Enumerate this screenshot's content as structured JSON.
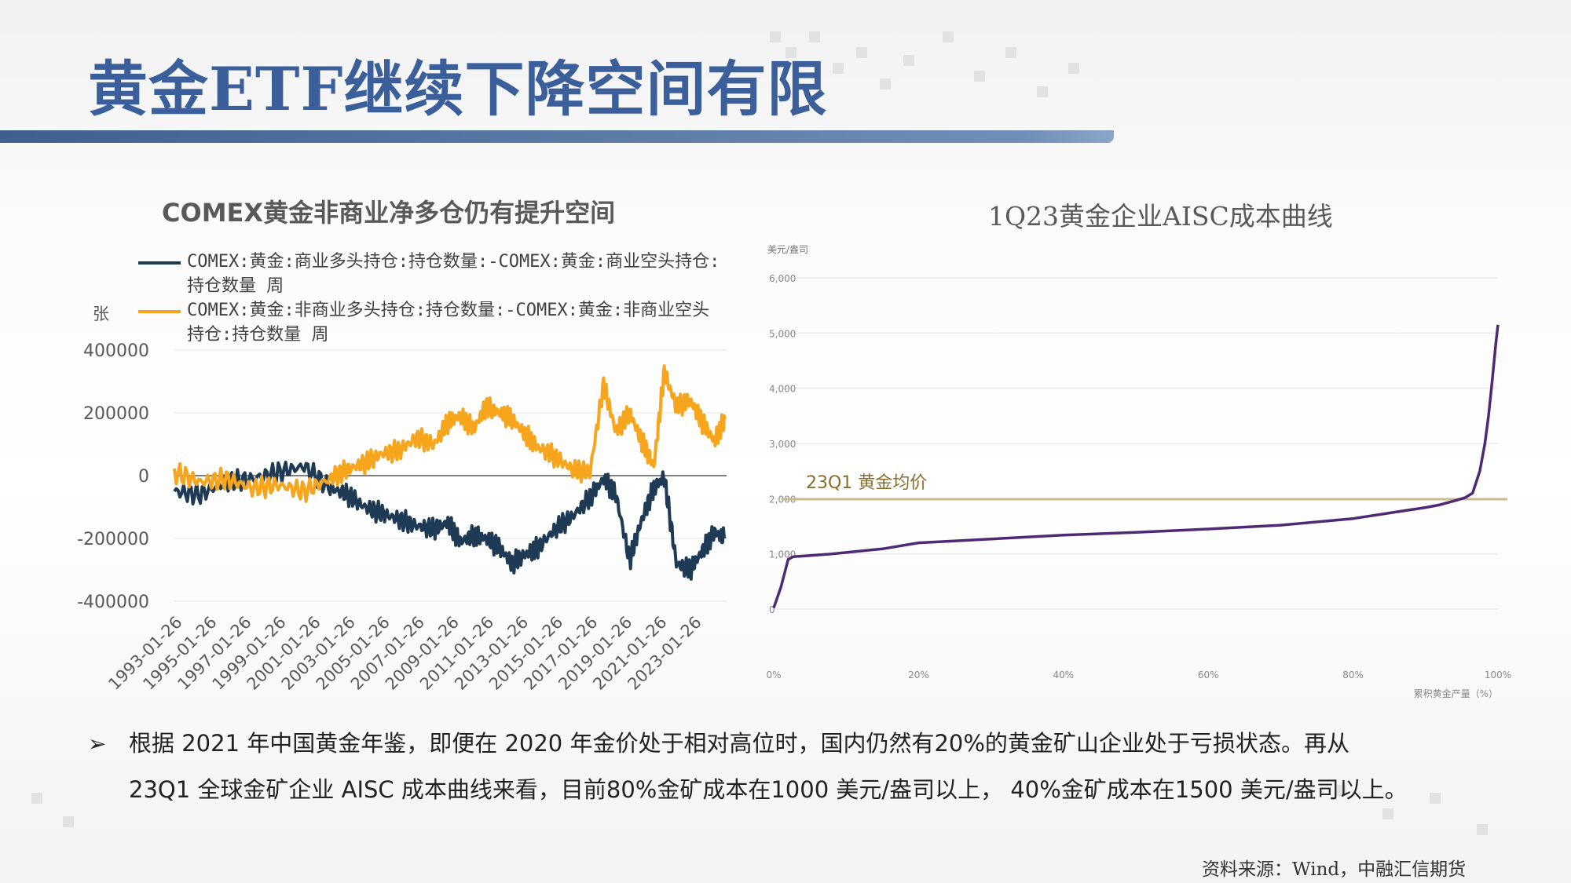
{
  "title": "黄金ETF继续下降空间有限",
  "left_chart": {
    "title": "COMEX黄金非商业净多仓仍有提升空间",
    "unit": "张",
    "colors": {
      "commercial": "#1f3a55",
      "noncommercial": "#f7a51c"
    }
  },
  "right_chart": {
    "title": "1Q23黄金企业AISC成本曲线",
    "avg_label": "23Q1 黄金均价",
    "colors": {
      "curve": "#4e2a74",
      "avg_line": "#c9b98c"
    }
  },
  "chart_data": [
    {
      "type": "line",
      "title": "COMEX黄金非商业净多仓仍有提升空间",
      "ylabel": "张",
      "ylim": [
        -400000,
        400000
      ],
      "yticks": [
        400000,
        200000,
        0,
        -200000,
        -400000
      ],
      "ytick_labels": [
        "400000",
        "200000",
        "0",
        "-200000",
        "-400000"
      ],
      "x_tick_labels": [
        "1993-01-26",
        "1995-01-26",
        "1997-01-26",
        "1999-01-26",
        "2001-01-26",
        "2003-01-26",
        "2005-01-26",
        "2007-01-26",
        "2009-01-26",
        "2011-01-26",
        "2013-01-26",
        "2015-01-26",
        "2017-01-26",
        "2019-01-26",
        "2021-01-26",
        "2023-01-26"
      ],
      "legend": "top",
      "x": [
        1992.5,
        1994.0,
        1995.5,
        1997.0,
        1998.5,
        2000.0,
        2001.5,
        2002.5,
        2003.5,
        2004.5,
        2005.5,
        2006.5,
        2007.5,
        2008.3,
        2009.0,
        2009.8,
        2010.5,
        2011.3,
        2012.0,
        2012.8,
        2013.5,
        2014.5,
        2015.5,
        2016.5,
        2017.3,
        2018.0,
        2018.8,
        2019.5,
        2020.2,
        2020.8,
        2021.5,
        2022.3,
        2023.0,
        2023.7,
        2024.3
      ],
      "series": [
        {
          "name": "COMEX:黄金:商业多头持仓:持仓数量:-COMEX:黄金:商业空头持仓:持仓数量 周",
          "values": [
            -50000,
            -60000,
            -20000,
            -10000,
            10000,
            30000,
            -40000,
            -60000,
            -100000,
            -120000,
            -140000,
            -160000,
            -170000,
            -150000,
            -210000,
            -190000,
            -200000,
            -230000,
            -280000,
            -250000,
            -230000,
            -170000,
            -130000,
            -70000,
            -10000,
            -60000,
            -270000,
            -140000,
            -40000,
            -5000,
            -280000,
            -300000,
            -240000,
            -180000,
            -200000
          ]
        },
        {
          "name": "COMEX:黄金:非商业多头持仓:持仓数量:-COMEX:黄金:非商业空头持仓:持仓数量 周",
          "values": [
            10000,
            -20000,
            -10000,
            -40000,
            -30000,
            -50000,
            -10000,
            20000,
            40000,
            70000,
            80000,
            120000,
            100000,
            170000,
            190000,
            150000,
            220000,
            200000,
            180000,
            130000,
            90000,
            60000,
            20000,
            10000,
            290000,
            140000,
            200000,
            110000,
            30000,
            330000,
            220000,
            240000,
            170000,
            110000,
            180000
          ]
        }
      ]
    },
    {
      "type": "line",
      "title": "1Q23黄金企业AISC成本曲线",
      "ylabel": "美元/盎司",
      "xlabel": "累积黄金产量（%）",
      "ylim": [
        0,
        6000
      ],
      "yticks": [
        0,
        1000,
        2000,
        3000,
        4000,
        5000,
        6000
      ],
      "ytick_labels": [
        "0",
        "1,000",
        "2,000",
        "3,000",
        "4,000",
        "5,000",
        "6,000"
      ],
      "xlim": [
        0,
        100
      ],
      "xticks": [
        0,
        20,
        40,
        60,
        80,
        100
      ],
      "xtick_labels": [
        "0%",
        "20%",
        "40%",
        "60%",
        "80%",
        "100%"
      ],
      "annotation": {
        "label": "23Q1 黄金均价",
        "y": 1990
      },
      "x": [
        0,
        1,
        2,
        2.7,
        4,
        8,
        15,
        20,
        30,
        40,
        50,
        60,
        70,
        80,
        85,
        90,
        92,
        94,
        95.5,
        96.5,
        97.5,
        98.2,
        98.7,
        99.1,
        99.4,
        99.7,
        100
      ],
      "values": [
        20,
        400,
        900,
        950,
        960,
        1000,
        1090,
        1200,
        1270,
        1340,
        1390,
        1450,
        1520,
        1640,
        1740,
        1840,
        1890,
        1960,
        2020,
        2100,
        2500,
        3000,
        3500,
        4000,
        4400,
        4800,
        5150
      ]
    }
  ],
  "bullet": {
    "arrow": "➢",
    "line1": "根据 2021 年中国黄金年鉴，即便在 2020 年金价处于相对高位时，国内仍然有20%的黄金矿山企业处于亏损状态。再从",
    "line2": "23Q1 全球金矿企业 AISC 成本曲线来看，目前80%金矿成本在1000 美元/盎司以上， 40%金矿成本在1500 美元/盎司以上。"
  },
  "source": "资料来源：Wind，中融汇信期货"
}
